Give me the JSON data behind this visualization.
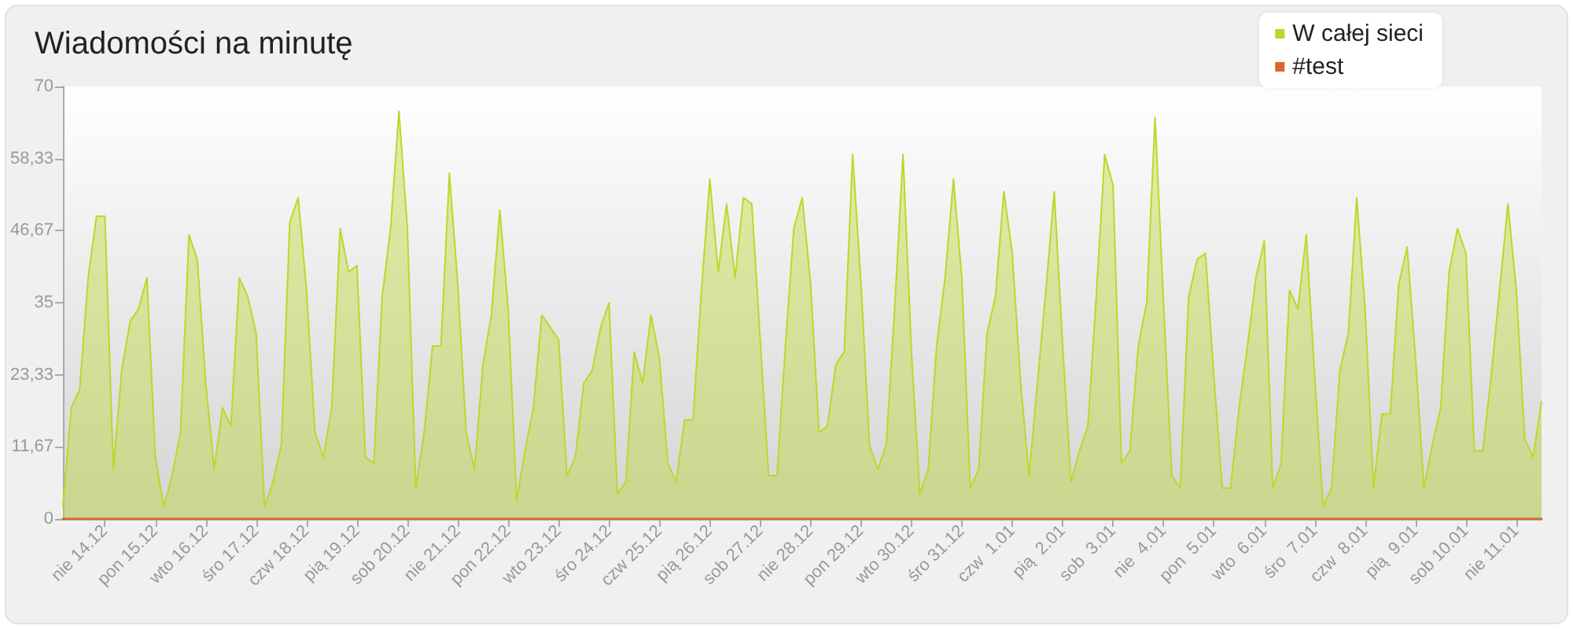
{
  "chart_data": {
    "type": "area",
    "title": "Wiadomości na minutę",
    "categories": [
      null,
      null,
      null,
      null,
      null,
      "nie 14.12",
      null,
      null,
      null,
      null,
      null,
      "pon 15.12",
      null,
      null,
      null,
      null,
      null,
      "wto 16.12",
      null,
      null,
      null,
      null,
      null,
      "śro 17.12",
      null,
      null,
      null,
      null,
      null,
      "czw 18.12",
      null,
      null,
      null,
      null,
      null,
      "pią 19.12",
      null,
      null,
      null,
      null,
      null,
      "sob 20.12",
      null,
      null,
      null,
      null,
      null,
      "nie 21.12",
      null,
      null,
      null,
      null,
      null,
      "pon 22.12",
      null,
      null,
      null,
      null,
      null,
      "wto 23.12",
      null,
      null,
      null,
      null,
      null,
      "śro 24.12",
      null,
      null,
      null,
      null,
      null,
      "czw 25.12",
      null,
      null,
      null,
      null,
      null,
      "pią 26.12",
      null,
      null,
      null,
      null,
      null,
      "sob 27.12",
      null,
      null,
      null,
      null,
      null,
      "nie 28.12",
      null,
      null,
      null,
      null,
      null,
      "pon 29.12",
      null,
      null,
      null,
      null,
      null,
      "wto 30.12",
      null,
      null,
      null,
      null,
      null,
      "śro 31.12",
      null,
      null,
      null,
      null,
      null,
      "czw  1.01",
      null,
      null,
      null,
      null,
      null,
      "pią  2.01",
      null,
      null,
      null,
      null,
      null,
      "sob  3.01",
      null,
      null,
      null,
      null,
      null,
      "nie  4.01",
      null,
      null,
      null,
      null,
      null,
      "pon  5.01",
      null,
      null,
      null,
      null,
      null,
      "wto  6.01",
      null,
      null,
      null,
      null,
      null,
      "śro  7.01",
      null,
      null,
      null,
      null,
      null,
      "czw  8.01",
      null,
      null,
      null,
      null,
      null,
      "pią  9.01",
      null,
      null,
      null,
      null,
      null,
      "sob 10.01",
      null,
      null,
      null,
      null,
      null,
      "nie 11.01",
      null,
      null,
      null
    ],
    "series": [
      {
        "name": "W całej sieci",
        "color": "#b8da28",
        "values": [
          2,
          18,
          21,
          39,
          49,
          49,
          8,
          24,
          32,
          34,
          39,
          10,
          2,
          7,
          14,
          46,
          42,
          22,
          8,
          18,
          15,
          39,
          36,
          30,
          2,
          6,
          12,
          48,
          52,
          37,
          14,
          10,
          18,
          47,
          40,
          41,
          10,
          9,
          36,
          47,
          66,
          47,
          5,
          14,
          28,
          28,
          56,
          38,
          14,
          8,
          25,
          33,
          50,
          34,
          3,
          11,
          18,
          33,
          31,
          29,
          7,
          10,
          22,
          24,
          31,
          35,
          4,
          6,
          27,
          22,
          33,
          26,
          9,
          6,
          16,
          16,
          37,
          55,
          40,
          51,
          39,
          52,
          51,
          29,
          7,
          7,
          28,
          47,
          52,
          38,
          14,
          15,
          25,
          27,
          59,
          38,
          12,
          8,
          12,
          34,
          59,
          27,
          4,
          8,
          28,
          39,
          55,
          39,
          5,
          8,
          30,
          36,
          53,
          43,
          22,
          7,
          22,
          37,
          53,
          28,
          6,
          11,
          15,
          36,
          59,
          54,
          9,
          11,
          28,
          35,
          65,
          35,
          7,
          5,
          36,
          42,
          43,
          23,
          5,
          5,
          18,
          28,
          39,
          45,
          5,
          9,
          37,
          34,
          46,
          23,
          2,
          5,
          24,
          30,
          52,
          34,
          5,
          17,
          17,
          38,
          44,
          26,
          5,
          12,
          18,
          40,
          47,
          43,
          11,
          11,
          23,
          37,
          51,
          37,
          13,
          10,
          19
        ]
      },
      {
        "name": "#test",
        "type": "line",
        "color": "#e0642c",
        "values": [
          0,
          0,
          0,
          0,
          0,
          0,
          0,
          0,
          0,
          0,
          0,
          0,
          0,
          0,
          0,
          0,
          0,
          0,
          0,
          0,
          0,
          0,
          0,
          0,
          0,
          0,
          0,
          0,
          0,
          0,
          0,
          0,
          0,
          0,
          0,
          0,
          0,
          0,
          0,
          0,
          0,
          0,
          0,
          0,
          0,
          0,
          0,
          0,
          0,
          0,
          0,
          0,
          0,
          0,
          0,
          0,
          0,
          0,
          0,
          0,
          0,
          0,
          0,
          0,
          0,
          0,
          0,
          0,
          0,
          0,
          0,
          0,
          0,
          0,
          0,
          0,
          0,
          0,
          0,
          0,
          0,
          0,
          0,
          0,
          0,
          0,
          0,
          0,
          0,
          0,
          0,
          0,
          0,
          0,
          0,
          0,
          0,
          0,
          0,
          0,
          0,
          0,
          0,
          0,
          0,
          0,
          0,
          0,
          0,
          0,
          0,
          0,
          0,
          0,
          0,
          0,
          0,
          0,
          0,
          0,
          0,
          0,
          0,
          0,
          0,
          0,
          0,
          0,
          0,
          0,
          0,
          0,
          0,
          0,
          0,
          0,
          0,
          0,
          0,
          0,
          0,
          0,
          0,
          0,
          0,
          0,
          0,
          0,
          0,
          0,
          0,
          0,
          0,
          0,
          0,
          0,
          0,
          0,
          0,
          0,
          0,
          0,
          0,
          0,
          0,
          0,
          0,
          0,
          0,
          0,
          0,
          0,
          0,
          0,
          0,
          0,
          0
        ]
      }
    ],
    "ylim": [
      0,
      70
    ],
    "yticks": [
      0,
      {
        "value": 11.67,
        "label": "11,67"
      },
      {
        "value": 23.33,
        "label": "23,33"
      },
      35,
      {
        "value": 46.67,
        "label": "46,67"
      },
      {
        "value": 58.33,
        "label": "58,33"
      },
      70
    ],
    "legend": "top right",
    "marker": "none"
  }
}
